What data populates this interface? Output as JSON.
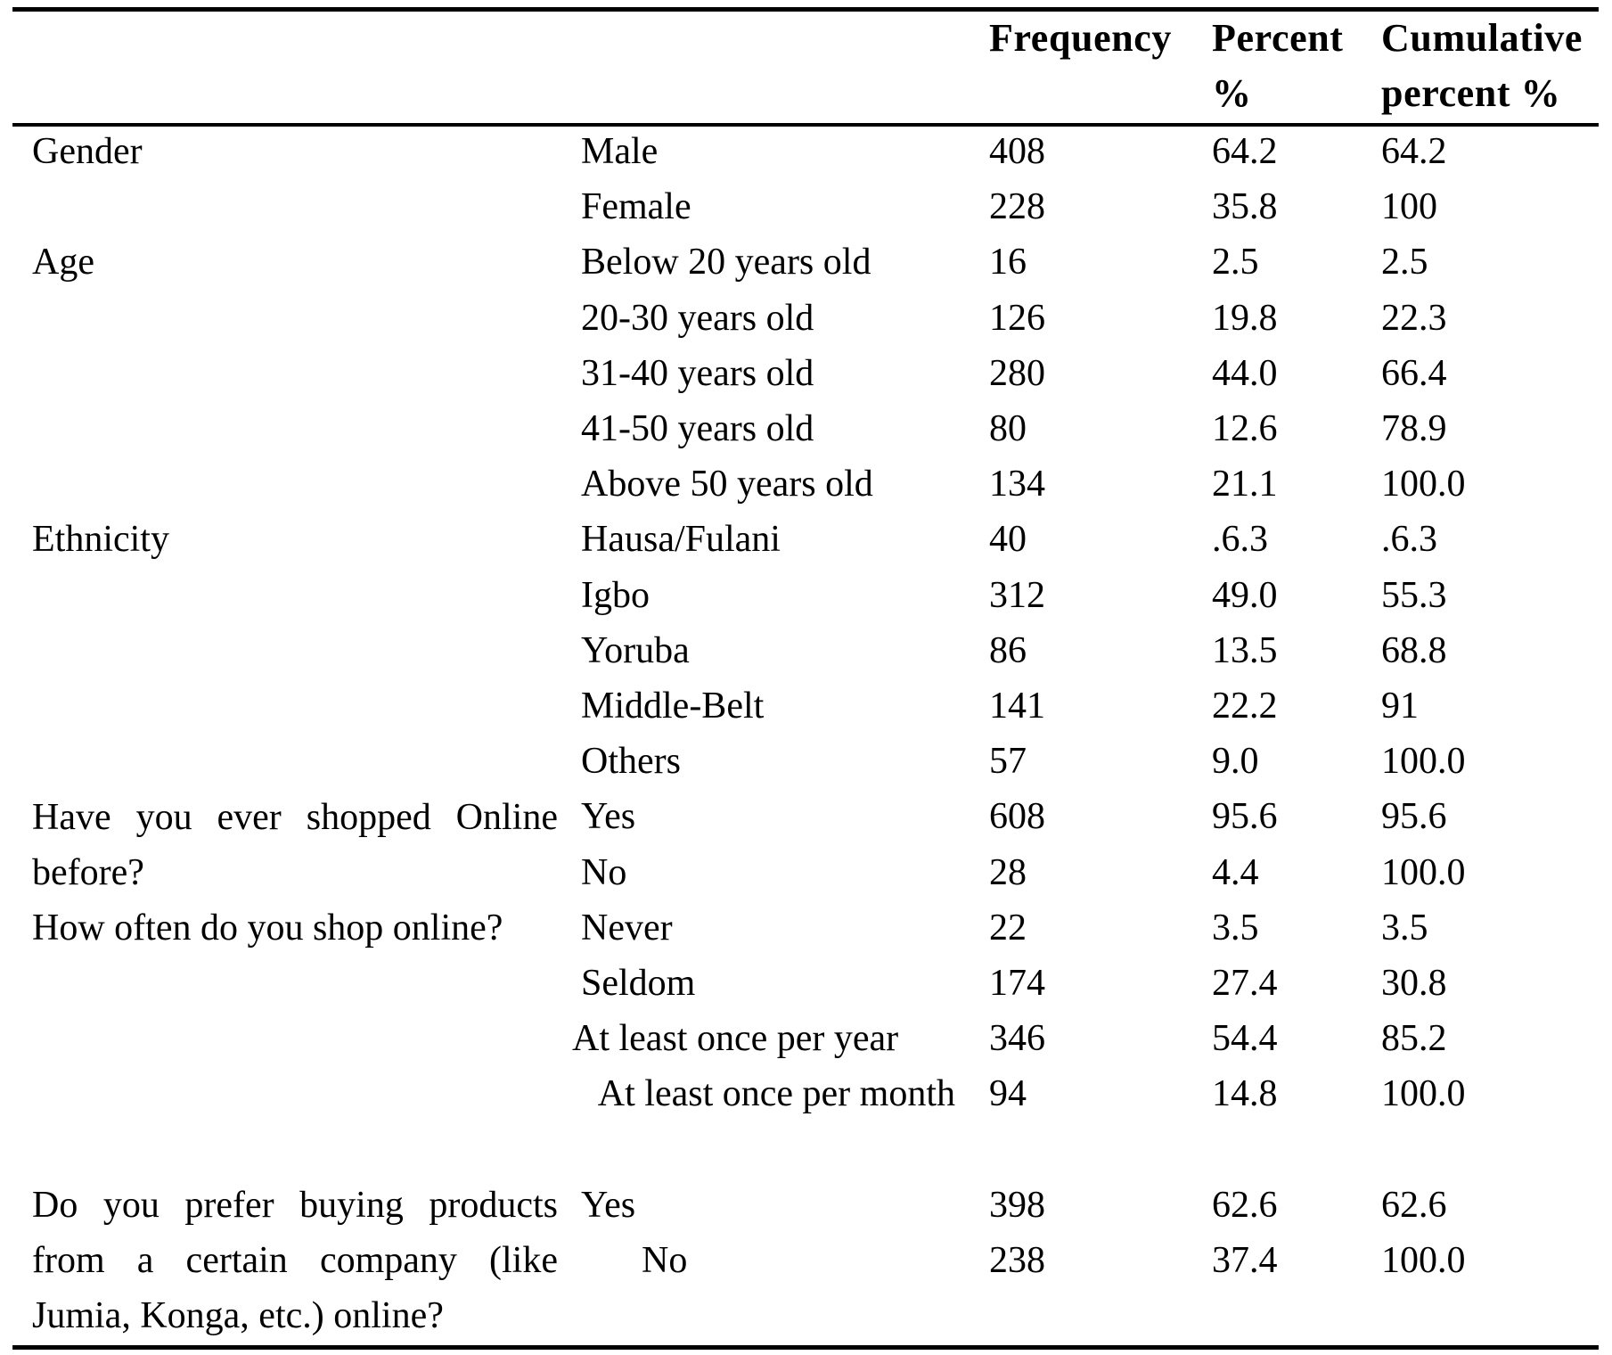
{
  "table": {
    "headers": {
      "frequency": "Frequency",
      "percent_line1": "Percent",
      "percent_line2": "%",
      "cumulative_line1": "Cumulative",
      "cumulative_line2": "percent %"
    },
    "rows": [
      {
        "variable": "Gender",
        "category": "Male",
        "frequency": "408",
        "percent": "64.2",
        "cumulative": "64.2"
      },
      {
        "variable": "",
        "category": "Female",
        "frequency": "228",
        "percent": "35.8",
        "cumulative": "100"
      },
      {
        "variable": "Age",
        "category": "Below 20 years old",
        "frequency": "16",
        "percent": "2.5",
        "cumulative": "2.5"
      },
      {
        "variable": "",
        "category": "20-30 years old",
        "frequency": "126",
        "percent": "19.8",
        "cumulative": "22.3"
      },
      {
        "variable": "",
        "category": "31-40 years old",
        "frequency": "280",
        "percent": "44.0",
        "cumulative": "66.4"
      },
      {
        "variable": "",
        "category": "41-50 years old",
        "frequency": "80",
        "percent": "12.6",
        "cumulative": "78.9"
      },
      {
        "variable": "",
        "category": "Above 50 years old",
        "frequency": "134",
        "percent": "21.1",
        "cumulative": "100.0"
      },
      {
        "variable": "Ethnicity",
        "category": "Hausa/Fulani",
        "frequency": "40",
        "percent": ".6.3",
        "cumulative": ".6.3"
      },
      {
        "variable": "",
        "category": "Igbo",
        "frequency": "312",
        "percent": "49.0",
        "cumulative": "55.3"
      },
      {
        "variable": "",
        "category": "Yoruba",
        "frequency": "86",
        "percent": "13.5",
        "cumulative": "68.8"
      },
      {
        "variable": "",
        "category": "Middle-Belt",
        "frequency": "141",
        "percent": "22.2",
        "cumulative": "91"
      },
      {
        "variable": "",
        "category": "Others",
        "frequency": "57",
        "percent": "9.0",
        "cumulative": "100.0"
      },
      {
        "variable": "",
        "category": "Yes",
        "frequency": "608",
        "percent": "95.6",
        "cumulative": "95.6"
      },
      {
        "variable": "",
        "category": "No",
        "frequency": "28",
        "percent": "4.4",
        "cumulative": "100.0"
      },
      {
        "variable": "",
        "category": "Never",
        "frequency": "22",
        "percent": "3.5",
        "cumulative": "3.5"
      },
      {
        "variable": "",
        "category": "Seldom",
        "frequency": "174",
        "percent": "27.4",
        "cumulative": "30.8"
      },
      {
        "variable": "",
        "category": "At least once per year",
        "frequency": "346",
        "percent": "54.4",
        "cumulative": "85.2"
      },
      {
        "variable": "",
        "category": "At least once per month",
        "frequency": "94",
        "percent": "14.8",
        "cumulative": "100.0"
      },
      {
        "variable": "",
        "category": "Yes",
        "frequency": "398",
        "percent": "62.6",
        "cumulative": "62.6"
      },
      {
        "variable": "",
        "category": "No",
        "frequency": "238",
        "percent": "37.4",
        "cumulative": "100.0"
      }
    ],
    "questions": {
      "shopped_online": "Have you ever shopped Online before?",
      "how_often": "How often do you shop online?",
      "prefer_company": "Do you prefer buying products from a certain company (like Jumia, Konga, etc.) online?"
    }
  }
}
